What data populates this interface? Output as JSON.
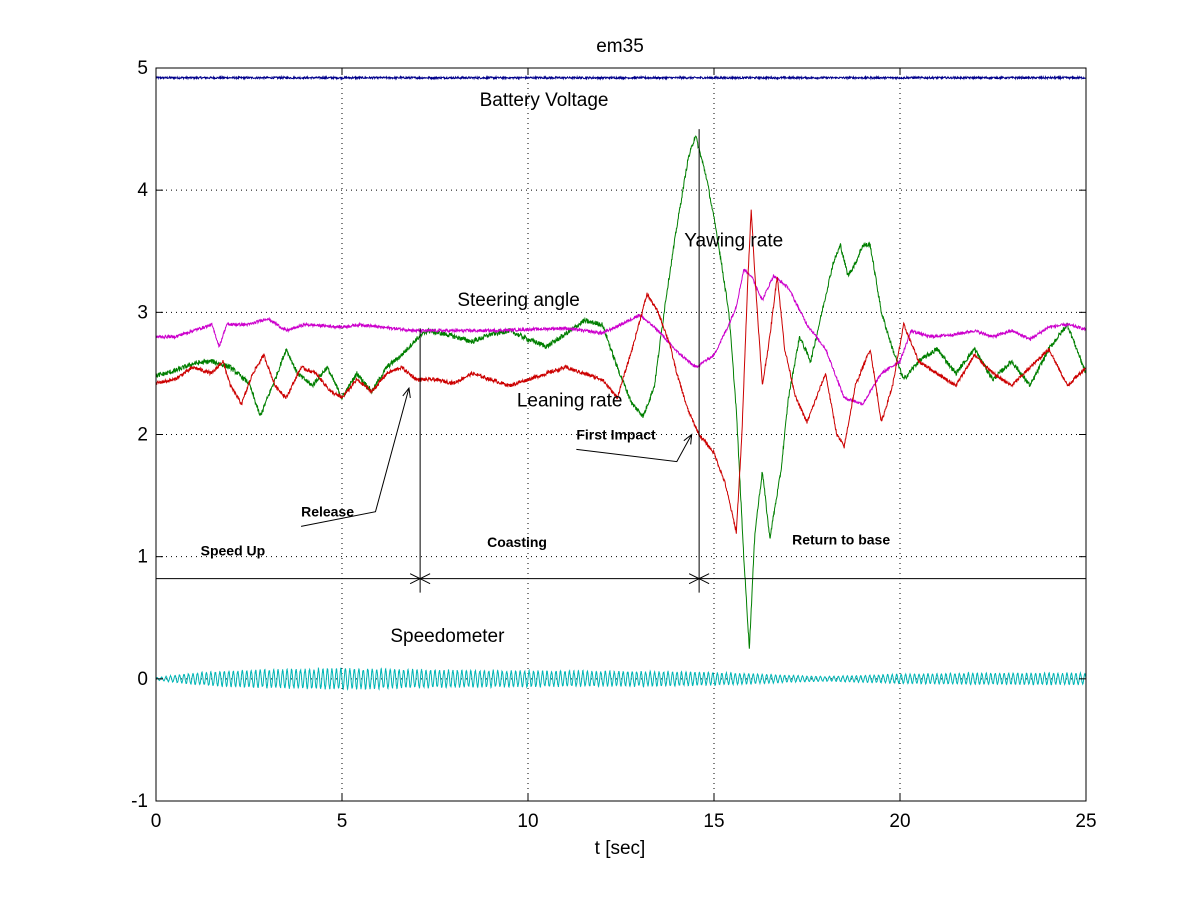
{
  "chart_data": {
    "type": "line",
    "title": "em35",
    "xlabel": "t [sec]",
    "ylabel": "",
    "xlim": [
      0,
      25
    ],
    "ylim": [
      -1,
      5
    ],
    "xticks": [
      "0",
      "5",
      "10",
      "15",
      "20",
      "25"
    ],
    "yticks": [
      "-1",
      "0",
      "1",
      "2",
      "3",
      "4",
      "5"
    ],
    "grid": true,
    "series": [
      {
        "name": "Battery Voltage",
        "color": "#00008b",
        "label_pos": [
          8.7,
          4.69
        ],
        "noise": 0.008,
        "points": [
          [
            0,
            4.92
          ],
          [
            25,
            4.92
          ]
        ]
      },
      {
        "name": "Yawing rate",
        "color": "#007f00",
        "label_pos": [
          14.2,
          3.54
        ],
        "noise": 0.02,
        "points": [
          [
            0,
            2.48
          ],
          [
            0.5,
            2.52
          ],
          [
            1,
            2.58
          ],
          [
            1.5,
            2.6
          ],
          [
            2,
            2.55
          ],
          [
            2.5,
            2.42
          ],
          [
            2.8,
            2.15
          ],
          [
            3.2,
            2.45
          ],
          [
            3.5,
            2.7
          ],
          [
            3.8,
            2.5
          ],
          [
            4.2,
            2.4
          ],
          [
            4.6,
            2.55
          ],
          [
            5,
            2.3
          ],
          [
            5.4,
            2.5
          ],
          [
            5.8,
            2.35
          ],
          [
            6.2,
            2.55
          ],
          [
            6.6,
            2.65
          ],
          [
            7,
            2.78
          ],
          [
            7.3,
            2.85
          ],
          [
            7.8,
            2.82
          ],
          [
            8.5,
            2.76
          ],
          [
            9,
            2.82
          ],
          [
            9.5,
            2.85
          ],
          [
            10,
            2.78
          ],
          [
            10.5,
            2.72
          ],
          [
            11,
            2.82
          ],
          [
            11.5,
            2.93
          ],
          [
            12,
            2.9
          ],
          [
            12.4,
            2.55
          ],
          [
            12.8,
            2.25
          ],
          [
            13.1,
            2.15
          ],
          [
            13.4,
            2.4
          ],
          [
            13.7,
            3.1
          ],
          [
            14,
            3.7
          ],
          [
            14.3,
            4.25
          ],
          [
            14.5,
            4.45
          ],
          [
            14.8,
            4.1
          ],
          [
            15.1,
            3.6
          ],
          [
            15.4,
            3.0
          ],
          [
            15.6,
            2.2
          ],
          [
            15.8,
            1.0
          ],
          [
            15.95,
            0.25
          ],
          [
            16.1,
            1.2
          ],
          [
            16.3,
            1.7
          ],
          [
            16.5,
            1.15
          ],
          [
            16.8,
            1.7
          ],
          [
            17,
            2.3
          ],
          [
            17.3,
            2.8
          ],
          [
            17.6,
            2.6
          ],
          [
            17.9,
            3.0
          ],
          [
            18.2,
            3.4
          ],
          [
            18.4,
            3.55
          ],
          [
            18.6,
            3.3
          ],
          [
            18.8,
            3.4
          ],
          [
            19,
            3.55
          ],
          [
            19.2,
            3.55
          ],
          [
            19.5,
            3.0
          ],
          [
            19.8,
            2.7
          ],
          [
            20.1,
            2.45
          ],
          [
            20.5,
            2.6
          ],
          [
            21,
            2.7
          ],
          [
            21.5,
            2.5
          ],
          [
            22,
            2.7
          ],
          [
            22.5,
            2.45
          ],
          [
            23,
            2.6
          ],
          [
            23.5,
            2.4
          ],
          [
            24,
            2.7
          ],
          [
            24.5,
            2.9
          ],
          [
            25,
            2.5
          ]
        ]
      },
      {
        "name": "Steering angle",
        "color": "#cc00cc",
        "label_pos": [
          8.1,
          3.05
        ],
        "noise": 0.012,
        "points": [
          [
            0,
            2.8
          ],
          [
            0.5,
            2.8
          ],
          [
            1,
            2.85
          ],
          [
            1.5,
            2.9
          ],
          [
            1.7,
            2.72
          ],
          [
            1.9,
            2.9
          ],
          [
            2.5,
            2.9
          ],
          [
            3,
            2.95
          ],
          [
            3.5,
            2.85
          ],
          [
            4,
            2.9
          ],
          [
            5,
            2.88
          ],
          [
            5.5,
            2.9
          ],
          [
            6,
            2.88
          ],
          [
            7,
            2.85
          ],
          [
            8,
            2.85
          ],
          [
            9,
            2.85
          ],
          [
            10,
            2.86
          ],
          [
            11,
            2.87
          ],
          [
            12,
            2.83
          ],
          [
            12.5,
            2.9
          ],
          [
            13,
            2.98
          ],
          [
            13.5,
            2.85
          ],
          [
            14,
            2.68
          ],
          [
            14.5,
            2.55
          ],
          [
            15,
            2.65
          ],
          [
            15.4,
            2.9
          ],
          [
            15.6,
            3.05
          ],
          [
            15.8,
            3.35
          ],
          [
            16,
            3.3
          ],
          [
            16.3,
            3.1
          ],
          [
            16.6,
            3.3
          ],
          [
            17,
            3.2
          ],
          [
            17.5,
            2.9
          ],
          [
            18,
            2.7
          ],
          [
            18.5,
            2.3
          ],
          [
            19,
            2.25
          ],
          [
            19.5,
            2.5
          ],
          [
            20,
            2.6
          ],
          [
            20.3,
            2.85
          ],
          [
            20.8,
            2.8
          ],
          [
            21.5,
            2.82
          ],
          [
            22,
            2.85
          ],
          [
            22.5,
            2.8
          ],
          [
            23,
            2.85
          ],
          [
            23.5,
            2.78
          ],
          [
            24,
            2.88
          ],
          [
            24.5,
            2.9
          ],
          [
            25,
            2.86
          ]
        ]
      },
      {
        "name": "Leaning rate",
        "color": "#cc0000",
        "label_pos": [
          9.7,
          2.23
        ],
        "noise": 0.015,
        "points": [
          [
            0,
            2.42
          ],
          [
            0.5,
            2.45
          ],
          [
            1,
            2.55
          ],
          [
            1.5,
            2.5
          ],
          [
            1.8,
            2.6
          ],
          [
            2,
            2.4
          ],
          [
            2.3,
            2.25
          ],
          [
            2.6,
            2.5
          ],
          [
            2.9,
            2.65
          ],
          [
            3.2,
            2.4
          ],
          [
            3.5,
            2.3
          ],
          [
            3.9,
            2.55
          ],
          [
            4.3,
            2.5
          ],
          [
            4.7,
            2.35
          ],
          [
            5,
            2.3
          ],
          [
            5.4,
            2.45
          ],
          [
            5.8,
            2.35
          ],
          [
            6.2,
            2.5
          ],
          [
            6.6,
            2.55
          ],
          [
            7,
            2.45
          ],
          [
            7.5,
            2.45
          ],
          [
            8,
            2.42
          ],
          [
            8.5,
            2.5
          ],
          [
            9,
            2.45
          ],
          [
            9.5,
            2.4
          ],
          [
            10,
            2.45
          ],
          [
            10.5,
            2.5
          ],
          [
            11,
            2.55
          ],
          [
            11.5,
            2.5
          ],
          [
            12,
            2.45
          ],
          [
            12.4,
            2.3
          ],
          [
            12.8,
            2.7
          ],
          [
            13.2,
            3.15
          ],
          [
            13.5,
            3.0
          ],
          [
            13.8,
            2.75
          ],
          [
            14,
            2.5
          ],
          [
            14.3,
            2.2
          ],
          [
            14.6,
            2.0
          ],
          [
            15,
            1.85
          ],
          [
            15.3,
            1.6
          ],
          [
            15.6,
            1.2
          ],
          [
            15.75,
            2.0
          ],
          [
            15.9,
            3.2
          ],
          [
            16,
            3.85
          ],
          [
            16.1,
            3.3
          ],
          [
            16.3,
            2.4
          ],
          [
            16.5,
            2.8
          ],
          [
            16.7,
            3.3
          ],
          [
            16.9,
            2.7
          ],
          [
            17.2,
            2.3
          ],
          [
            17.5,
            2.1
          ],
          [
            18,
            2.5
          ],
          [
            18.3,
            2.0
          ],
          [
            18.5,
            1.9
          ],
          [
            18.8,
            2.4
          ],
          [
            19.2,
            2.7
          ],
          [
            19.5,
            2.1
          ],
          [
            19.8,
            2.4
          ],
          [
            20.1,
            2.9
          ],
          [
            20.5,
            2.6
          ],
          [
            21,
            2.5
          ],
          [
            21.5,
            2.4
          ],
          [
            22,
            2.65
          ],
          [
            22.5,
            2.5
          ],
          [
            23,
            2.4
          ],
          [
            23.5,
            2.55
          ],
          [
            24,
            2.7
          ],
          [
            24.5,
            2.4
          ],
          [
            25,
            2.55
          ]
        ]
      },
      {
        "name": "Speedometer",
        "color": "#00b5b5",
        "label_pos": [
          6.3,
          0.3
        ],
        "oscillation": true,
        "amplitude_envelope": [
          [
            0,
            0.01
          ],
          [
            1,
            0.05
          ],
          [
            2,
            0.07
          ],
          [
            3,
            0.08
          ],
          [
            4,
            0.085
          ],
          [
            5,
            0.09
          ],
          [
            6,
            0.085
          ],
          [
            7,
            0.08
          ],
          [
            8,
            0.075
          ],
          [
            9,
            0.072
          ],
          [
            10,
            0.07
          ],
          [
            11,
            0.068
          ],
          [
            12,
            0.065
          ],
          [
            13,
            0.065
          ],
          [
            14,
            0.062
          ],
          [
            15,
            0.055
          ],
          [
            16,
            0.045
          ],
          [
            17,
            0.03
          ],
          [
            18,
            0.02
          ],
          [
            19,
            0.03
          ],
          [
            20,
            0.04
          ],
          [
            21,
            0.045
          ],
          [
            22,
            0.05
          ],
          [
            23,
            0.05
          ],
          [
            24,
            0.05
          ],
          [
            25,
            0.05
          ]
        ]
      }
    ],
    "annotations": [
      {
        "text": "Release",
        "pos": [
          3.9,
          1.33
        ],
        "arrow_from": [
          5.9,
          1.45
        ],
        "arrow_to": [
          6.8,
          2.38
        ]
      },
      {
        "text": "First Impact",
        "pos": [
          11.3,
          1.96
        ],
        "arrow_from": [
          14.0,
          1.86
        ],
        "arrow_to": [
          14.4,
          2.0
        ]
      },
      {
        "text": "Speed Up",
        "pos": [
          1.2,
          1.01
        ]
      },
      {
        "text": "Coasting",
        "pos": [
          8.9,
          1.08
        ]
      },
      {
        "text": "Return to base",
        "pos": [
          17.1,
          1.1
        ]
      }
    ],
    "phase_markers": {
      "baseline_y": 0.82,
      "boundaries": [
        7.1,
        14.6
      ]
    }
  }
}
